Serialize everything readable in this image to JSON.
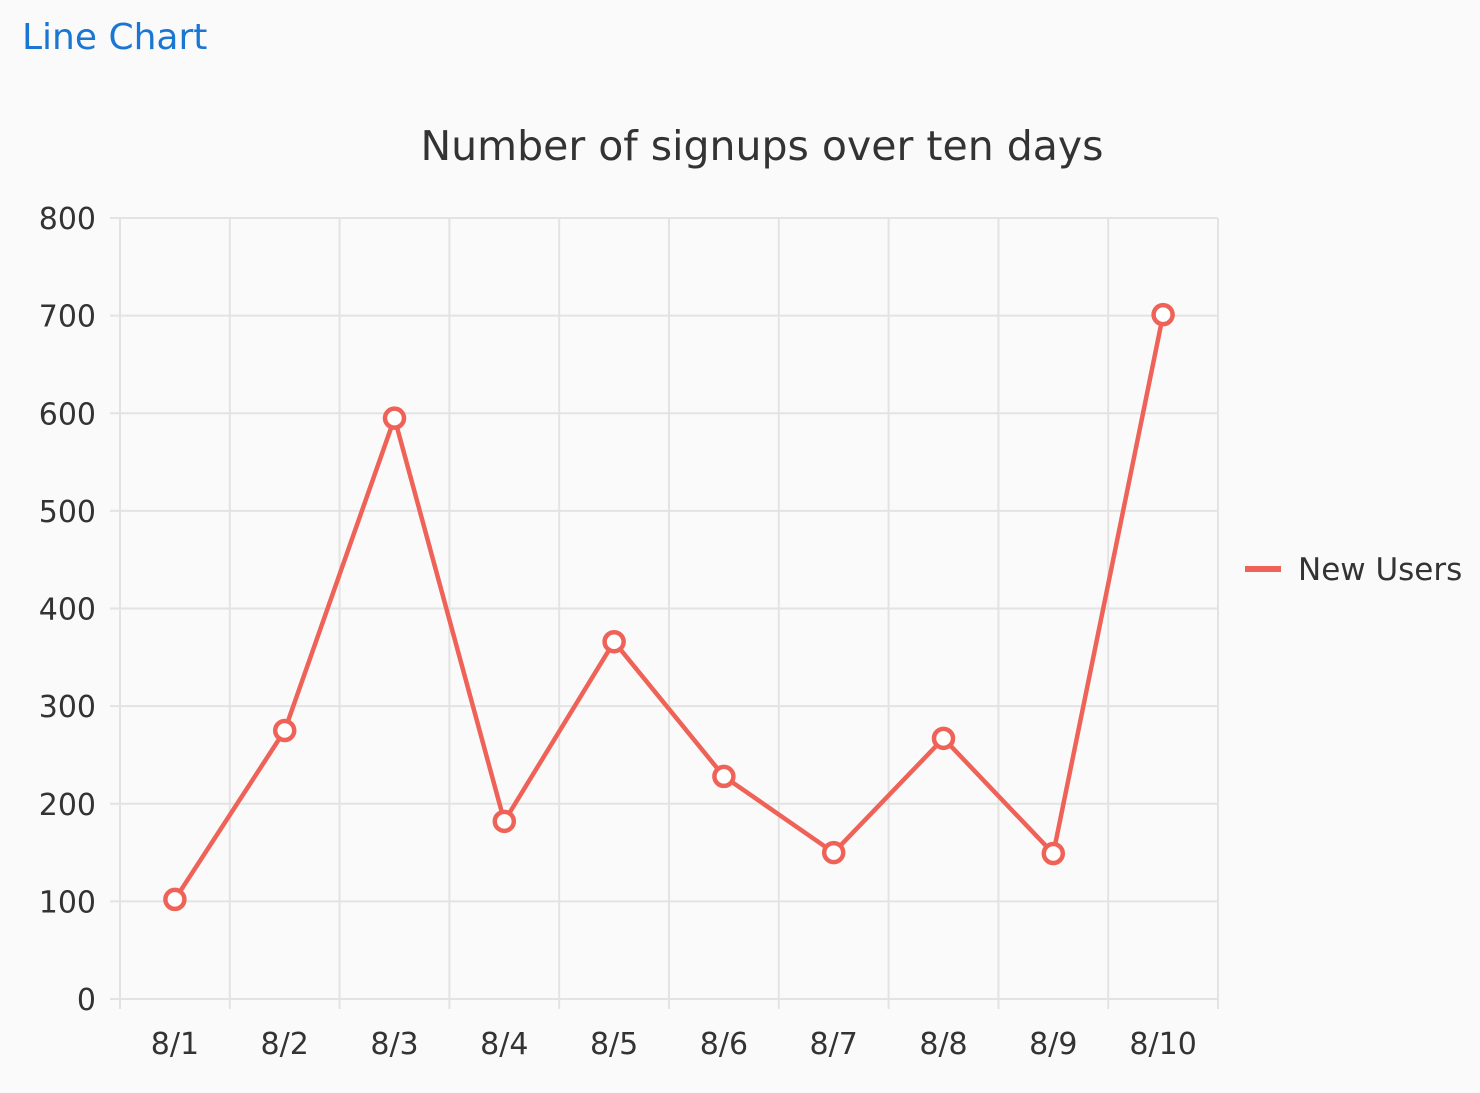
{
  "page": {
    "heading": "Line Chart"
  },
  "colors": {
    "heading": "#1976d2",
    "series": "#ef6257",
    "grid": "#e3e3e3",
    "text": "#333333",
    "background": "#fafafa"
  },
  "chart_data": {
    "type": "line",
    "title": "Number of signups over ten days",
    "xlabel": "",
    "ylabel": "",
    "categories": [
      "8/1",
      "8/2",
      "8/3",
      "8/4",
      "8/5",
      "8/6",
      "8/7",
      "8/8",
      "8/9",
      "8/10"
    ],
    "series": [
      {
        "name": "New Users",
        "values": [
          102,
          275,
          595,
          182,
          366,
          228,
          150,
          267,
          149,
          701
        ]
      }
    ],
    "ylim": [
      0,
      800
    ],
    "yticks": [
      0,
      100,
      200,
      300,
      400,
      500,
      600,
      700,
      800
    ],
    "grid": true,
    "legend_position": "right",
    "marker": "hollow-circle"
  }
}
